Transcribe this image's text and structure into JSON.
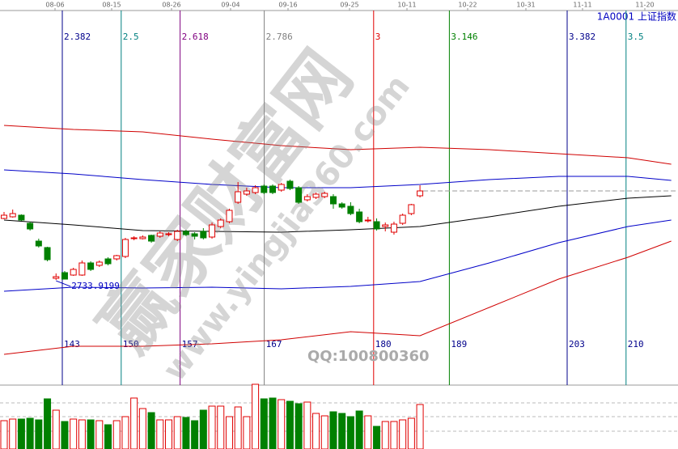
{
  "chart_data": {
    "type": "candlestick",
    "title": "1A0001 上证指数",
    "date_labels": [
      "08-06",
      "08-15",
      "08-26",
      "09-04",
      "09-16",
      "09-25",
      "10-11",
      "10-22",
      "10-31",
      "11-11",
      "11-20"
    ],
    "ylim": [
      2605,
      3065
    ],
    "candles": {
      "open": [
        2810,
        2812,
        2814,
        2804,
        2782,
        2774,
        2736,
        2743,
        2740,
        2740,
        2755,
        2752,
        2760,
        2760,
        2763,
        2785,
        2785,
        2789,
        2788,
        2790,
        2784,
        2794,
        2791,
        2794,
        2787,
        2800,
        2806,
        2830,
        2840,
        2842,
        2850,
        2850,
        2845,
        2856,
        2848,
        2833,
        2836,
        2837,
        2837,
        2828,
        2825,
        2818,
        2807,
        2806,
        2800,
        2793,
        2804,
        2816,
        2838
      ],
      "close": [
        2814,
        2816,
        2808,
        2797,
        2776,
        2759,
        2738,
        2735,
        2747,
        2755,
        2747,
        2756,
        2754,
        2764,
        2784,
        2786,
        2787,
        2782,
        2792,
        2791,
        2794,
        2790,
        2788,
        2786,
        2802,
        2808,
        2820,
        2843,
        2844,
        2848,
        2842,
        2842,
        2852,
        2847,
        2830,
        2837,
        2840,
        2841,
        2828,
        2824,
        2816,
        2806,
        2808,
        2797,
        2802,
        2803,
        2814,
        2827,
        2844
      ],
      "high": [
        2818,
        2821,
        2815,
        2806,
        2785,
        2775,
        2742,
        2745,
        2749,
        2758,
        2757,
        2758,
        2762,
        2765,
        2786,
        2788,
        2789,
        2790,
        2794,
        2793,
        2796,
        2796,
        2793,
        2798,
        2805,
        2810,
        2822,
        2855,
        2848,
        2851,
        2852,
        2852,
        2854,
        2858,
        2850,
        2840,
        2842,
        2843,
        2840,
        2830,
        2830,
        2822,
        2812,
        2810,
        2805,
        2806,
        2816,
        2828,
        2851
      ],
      "low": [
        2809,
        2811,
        2807,
        2795,
        2774,
        2757,
        2733.9199,
        2735,
        2739,
        2739,
        2745,
        2750,
        2752,
        2758,
        2761,
        2783,
        2784,
        2780,
        2786,
        2788,
        2782,
        2788,
        2784,
        2784,
        2785,
        2798,
        2804,
        2828,
        2838,
        2840,
        2840,
        2840,
        2843,
        2845,
        2828,
        2831,
        2834,
        2835,
        2822,
        2822,
        2814,
        2804,
        2805,
        2795,
        2794,
        2790,
        2802,
        2814,
        2836
      ]
    },
    "bands": {
      "x": [
        0,
        8,
        16,
        24,
        32,
        40,
        48,
        56,
        64,
        72,
        77
      ],
      "series": [
        {
          "color": "#d00000",
          "values": [
            2925,
            2920,
            2917,
            2908,
            2900,
            2895,
            2898,
            2895,
            2890,
            2885,
            2877
          ]
        },
        {
          "color": "#0000c8",
          "values": [
            2870,
            2865,
            2858,
            2852,
            2848,
            2848,
            2852,
            2858,
            2862,
            2862,
            2857
          ]
        },
        {
          "color": "#000000",
          "values": [
            2808,
            2802,
            2795,
            2794,
            2793,
            2796,
            2800,
            2812,
            2825,
            2835,
            2838
          ]
        },
        {
          "color": "#0000c8",
          "values": [
            2720,
            2725,
            2724,
            2725,
            2723,
            2726,
            2732,
            2755,
            2780,
            2800,
            2808
          ]
        },
        {
          "color": "#d00000",
          "values": [
            2642,
            2652,
            2652,
            2655,
            2660,
            2670,
            2665,
            2700,
            2735,
            2762,
            2782
          ]
        }
      ]
    },
    "volume": {
      "ylim": [
        0,
        70
      ],
      "values": [
        35,
        37,
        37,
        38,
        36,
        62,
        48,
        34,
        37,
        36,
        36,
        35,
        30,
        35,
        40,
        63,
        50,
        45,
        36,
        36,
        40,
        39,
        35,
        48,
        53,
        53,
        40,
        52,
        40,
        80,
        62,
        63,
        61,
        59,
        56,
        58,
        44,
        41,
        46,
        44,
        40,
        47,
        41,
        28,
        34,
        34,
        36,
        38,
        55
      ]
    },
    "fib_lines": [
      {
        "ratio": 2.382,
        "count": 143,
        "color": "#00008b"
      },
      {
        "ratio": 2.5,
        "count": 150,
        "color": "#008080"
      },
      {
        "ratio": 2.618,
        "count": 157,
        "color": "#800080"
      },
      {
        "ratio": 2.786,
        "count": 167,
        "color": "#808080"
      },
      {
        "ratio": 3,
        "count": 180,
        "color": "#e00000"
      },
      {
        "ratio": 3.146,
        "count": 189,
        "color": "#008000"
      },
      {
        "ratio": 3.382,
        "count": 203,
        "color": "#00008b"
      },
      {
        "ratio": 3.5,
        "count": 210,
        "color": "#008080"
      }
    ],
    "watermark": {
      "site": "赢家财富网",
      "url": "www.yingjia360.com",
      "qq": "QQ:100800360"
    }
  }
}
